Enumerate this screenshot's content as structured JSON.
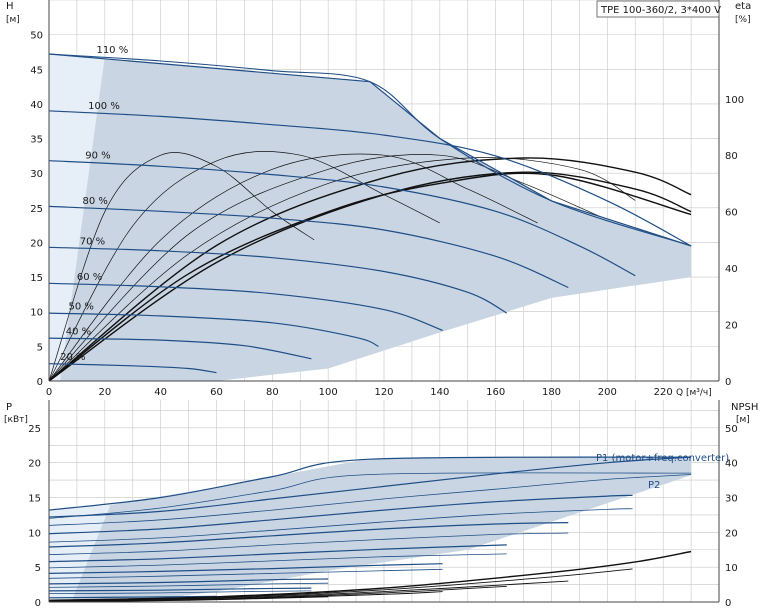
{
  "colors": {
    "envelope": "#c9d5e3",
    "envelope_light": "#e6eef8",
    "curve": "#1f4e86",
    "grid": "#c8c8c8",
    "black": "#111111"
  },
  "chart_data": [
    {
      "type": "line",
      "title": "TPE 100-360/2, 3*400 V",
      "xlabel": "Q [м³/ч]",
      "ylabel": "H",
      "ylabel_unit": "[м]",
      "y2label": "eta",
      "y2label_unit": "[%]",
      "xlim": [
        0,
        240
      ],
      "ylim": [
        0,
        55
      ],
      "y2lim": [
        0,
        135
      ],
      "x_ticks": [
        0,
        20,
        40,
        60,
        80,
        100,
        120,
        140,
        160,
        180,
        200,
        220
      ],
      "y_ticks": [
        0,
        5,
        10,
        15,
        20,
        25,
        30,
        35,
        40,
        45,
        50
      ],
      "y2_ticks": [
        0,
        20,
        40,
        60,
        80,
        100
      ],
      "envelope": [
        [
          0,
          47.2
        ],
        [
          115,
          43.2
        ],
        [
          140,
          35
        ],
        [
          180,
          26
        ],
        [
          230,
          19.5
        ],
        [
          230,
          15
        ],
        [
          180,
          12
        ],
        [
          140,
          7
        ],
        [
          100,
          1.8
        ],
        [
          60,
          0
        ],
        [
          0,
          0
        ]
      ],
      "series": [
        {
          "name": "110 %",
          "x": [
            0,
            40,
            80,
            115,
            140,
            180,
            230
          ],
          "y": [
            47.2,
            46.2,
            44.8,
            43.2,
            35,
            26,
            19.5
          ]
        },
        {
          "name": "100 %",
          "x": [
            0,
            40,
            80,
            120,
            160,
            200,
            230
          ],
          "y": [
            39,
            38.2,
            37,
            35.5,
            32.5,
            26,
            19.5
          ]
        },
        {
          "name": "90 %",
          "x": [
            0,
            40,
            80,
            120,
            160,
            190,
            210
          ],
          "y": [
            31.8,
            31,
            29.8,
            28,
            24.5,
            19.5,
            15.2
          ]
        },
        {
          "name": "80 %",
          "x": [
            0,
            40,
            80,
            120,
            160,
            186
          ],
          "y": [
            25.2,
            24.5,
            23.5,
            21.8,
            18,
            13.5
          ]
        },
        {
          "name": "70 %",
          "x": [
            0,
            40,
            80,
            120,
            150,
            164
          ],
          "y": [
            19.3,
            18.8,
            17.8,
            15.8,
            12.8,
            9.8
          ]
        },
        {
          "name": "60 %",
          "x": [
            0,
            40,
            80,
            120,
            141
          ],
          "y": [
            14.1,
            13.6,
            12.6,
            10.3,
            7.3
          ]
        },
        {
          "name": "50 %",
          "x": [
            0,
            40,
            80,
            110,
            118
          ],
          "y": [
            9.8,
            9.4,
            8.4,
            6.3,
            5
          ]
        },
        {
          "name": "40 %",
          "x": [
            0,
            40,
            70,
            94
          ],
          "y": [
            6.2,
            5.9,
            5.1,
            3.2
          ]
        },
        {
          "name": "20 %",
          "x": [
            0,
            30,
            50,
            60
          ],
          "y": [
            2.5,
            2.2,
            1.8,
            1.2
          ]
        }
      ],
      "label_positions_q": {
        "110 %": 17,
        "100 %": 14,
        "90 %": 13,
        "80 %": 12,
        "70 %": 11,
        "60 %": 10,
        "50 %": 7,
        "40 %": 6,
        "20 %": 4
      },
      "eta_curves": [
        {
          "x": [
            0,
            20,
            40,
            60,
            80,
            95
          ],
          "y": [
            0,
            60,
            80,
            76,
            60,
            50
          ]
        },
        {
          "x": [
            0,
            30,
            60,
            90,
            120,
            140
          ],
          "y": [
            0,
            55,
            78,
            80,
            66,
            56
          ]
        },
        {
          "x": [
            0,
            40,
            80,
            120,
            150,
            175
          ],
          "y": [
            0,
            50,
            75,
            80,
            68,
            56
          ]
        },
        {
          "x": [
            0,
            50,
            100,
            140,
            170,
            198
          ],
          "y": [
            0,
            52,
            75,
            80,
            70,
            58
          ]
        },
        {
          "x": [
            0,
            50,
            100,
            150,
            190,
            210
          ],
          "y": [
            0,
            45,
            70,
            79,
            75,
            64
          ]
        },
        {
          "x": [
            0,
            60,
            120,
            170,
            210,
            230
          ],
          "y": [
            0,
            48,
            72,
            79,
            74,
            66
          ]
        },
        {
          "x": [
            0,
            60,
            120,
            170,
            210,
            230
          ],
          "y": [
            0,
            42,
            66,
            74,
            68,
            60
          ]
        },
        {
          "x": [
            0,
            50,
            100,
            140,
            180,
            230
          ],
          "y": [
            0,
            38,
            60,
            70,
            73,
            59
          ]
        }
      ]
    },
    {
      "type": "line",
      "xlabel": "",
      "ylabel": "P",
      "ylabel_unit": "[кВт]",
      "y2label": "NPSH",
      "y2label_unit": "[м]",
      "xlim": [
        0,
        240
      ],
      "ylim": [
        0,
        29
      ],
      "y2lim": [
        0,
        58
      ],
      "y_ticks": [
        0,
        5,
        10,
        15,
        20,
        25
      ],
      "y2_ticks": [
        0,
        10,
        20,
        30,
        40,
        50
      ],
      "annotations": [
        "P1 (motor+freq.converter)",
        "P2"
      ],
      "envelope": [
        [
          0,
          13.2
        ],
        [
          20,
          13.8
        ],
        [
          60,
          16.5
        ],
        [
          115,
          20.6
        ],
        [
          230,
          20.8
        ],
        [
          230,
          18.2
        ],
        [
          150,
          7.5
        ],
        [
          100,
          4.5
        ],
        [
          60,
          1.5
        ],
        [
          30,
          0
        ],
        [
          0,
          0
        ]
      ],
      "p1": [
        {
          "x": [
            0,
            40,
            80,
            115,
            230
          ],
          "y": [
            13.2,
            15,
            18,
            20.5,
            20.8
          ]
        },
        {
          "x": [
            0,
            40,
            80,
            120,
            160,
            200,
            230
          ],
          "y": [
            12.2,
            13,
            14.8,
            16.6,
            18.4,
            20,
            20.8
          ]
        },
        {
          "x": [
            0,
            40,
            80,
            120,
            160,
            200,
            209
          ],
          "y": [
            9.8,
            10.5,
            11.8,
            13.2,
            14.4,
            15.2,
            15.3
          ]
        },
        {
          "x": [
            0,
            40,
            80,
            120,
            160,
            186
          ],
          "y": [
            7.9,
            8.5,
            9.5,
            10.5,
            11.2,
            11.4
          ]
        },
        {
          "x": [
            0,
            40,
            80,
            120,
            164
          ],
          "y": [
            5.8,
            6.2,
            6.9,
            7.6,
            8.2
          ]
        },
        {
          "x": [
            0,
            40,
            80,
            120,
            141
          ],
          "y": [
            4.1,
            4.4,
            4.8,
            5.3,
            5.5
          ]
        },
        {
          "x": [
            0,
            40,
            80,
            100
          ],
          "y": [
            2.6,
            2.8,
            3.2,
            3.3
          ]
        },
        {
          "x": [
            0,
            40,
            70,
            94
          ],
          "y": [
            1.6,
            1.7,
            1.9,
            2
          ]
        },
        {
          "x": [
            0,
            30,
            60
          ],
          "y": [
            0.6,
            0.7,
            0.8
          ]
        }
      ],
      "p2": [
        {
          "x": [
            0,
            40,
            80,
            115,
            230
          ],
          "y": [
            12,
            13.5,
            16,
            18.3,
            18.5
          ]
        },
        {
          "x": [
            0,
            40,
            80,
            120,
            160,
            200,
            230
          ],
          "y": [
            11,
            11.8,
            13.2,
            14.8,
            16.2,
            17.6,
            18.3
          ]
        },
        {
          "x": [
            0,
            40,
            80,
            120,
            160,
            200,
            209
          ],
          "y": [
            8.6,
            9.2,
            10.3,
            11.5,
            12.6,
            13.3,
            13.4
          ]
        },
        {
          "x": [
            0,
            40,
            80,
            120,
            160,
            186
          ],
          "y": [
            6.8,
            7.3,
            8.2,
            9,
            9.7,
            9.9
          ]
        },
        {
          "x": [
            0,
            40,
            80,
            120,
            164
          ],
          "y": [
            4.9,
            5.3,
            5.9,
            6.5,
            6.9
          ]
        },
        {
          "x": [
            0,
            40,
            80,
            120,
            141
          ],
          "y": [
            3.4,
            3.7,
            4.1,
            4.5,
            4.7
          ]
        },
        {
          "x": [
            0,
            40,
            80,
            100
          ],
          "y": [
            2.1,
            2.3,
            2.6,
            2.7
          ]
        },
        {
          "x": [
            0,
            40,
            70,
            94
          ],
          "y": [
            1.2,
            1.3,
            1.5,
            1.6
          ]
        }
      ],
      "npsh": [
        {
          "x": [
            0,
            60,
            120,
            180,
            210,
            230
          ],
          "y": [
            0.5,
            1.5,
            4,
            8.5,
            11.5,
            14.5
          ]
        },
        {
          "x": [
            0,
            60,
            120,
            180,
            209
          ],
          "y": [
            0.4,
            1.3,
            3.5,
            7.2,
            9.5
          ]
        },
        {
          "x": [
            0,
            60,
            120,
            186
          ],
          "y": [
            0.3,
            1.1,
            3,
            6
          ]
        },
        {
          "x": [
            0,
            60,
            120,
            164
          ],
          "y": [
            0.2,
            0.9,
            2.6,
            4.5
          ]
        },
        {
          "x": [
            0,
            60,
            120,
            141
          ],
          "y": [
            0.2,
            0.8,
            2.2,
            3
          ]
        },
        {
          "x": [
            0,
            50,
            100
          ],
          "y": [
            0.1,
            0.5,
            1.5
          ]
        }
      ]
    }
  ]
}
